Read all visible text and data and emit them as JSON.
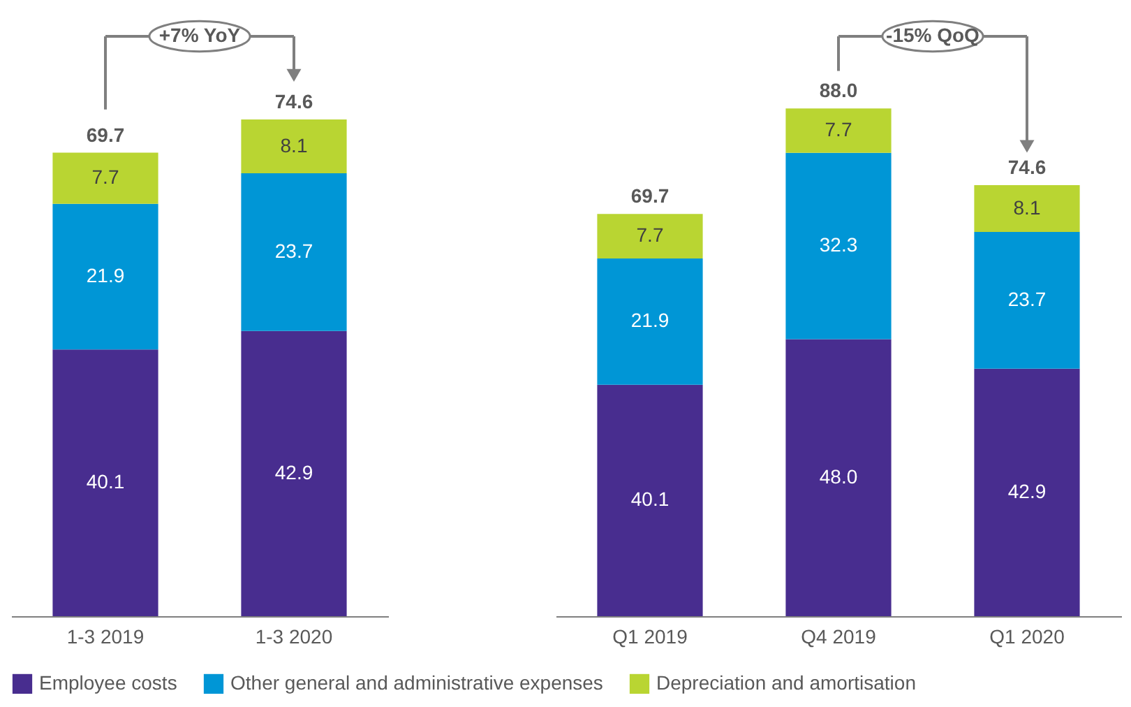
{
  "chart_data": [
    {
      "type": "bar",
      "stacked": true,
      "categories": [
        "1-3 2019",
        "1-3 2020"
      ],
      "tick_labels": "x",
      "grid": false,
      "legend": "bottom",
      "series": [
        {
          "name": "Employee costs",
          "color": "#482d8f",
          "values": [
            40.1,
            42.9
          ],
          "value_labels": [
            "40.1",
            "42.9"
          ]
        },
        {
          "name": "Other general and administrative expenses",
          "color": "#0096d6",
          "values": [
            21.9,
            23.7
          ],
          "value_labels": [
            "21.9",
            "23.7"
          ]
        },
        {
          "name": "Depreciation and amortisation",
          "color": "#b9d532",
          "values": [
            7.7,
            8.1
          ],
          "value_labels": [
            "7.7",
            "8.1"
          ]
        }
      ],
      "totals": [
        "69.7",
        "74.6"
      ],
      "annotations": [
        "+7% YoY"
      ]
    },
    {
      "type": "bar",
      "stacked": true,
      "categories": [
        "Q1 2019",
        "Q4 2019",
        "Q1 2020"
      ],
      "tick_labels": "x",
      "grid": false,
      "legend": "bottom",
      "series": [
        {
          "name": "Employee costs",
          "color": "#482d8f",
          "values": [
            40.1,
            48.0,
            42.9
          ],
          "value_labels": [
            "40.1",
            "48.0",
            "42.9"
          ]
        },
        {
          "name": "Other general and administrative expenses",
          "color": "#0096d6",
          "values": [
            21.9,
            32.3,
            23.7
          ],
          "value_labels": [
            "21.9",
            "32.3",
            "23.7"
          ]
        },
        {
          "name": "Depreciation and amortisation",
          "color": "#b9d532",
          "values": [
            7.7,
            7.7,
            8.1
          ],
          "value_labels": [
            "7.7",
            "7.7",
            "8.1"
          ]
        }
      ],
      "totals": [
        "69.7",
        "88.0",
        "74.6"
      ],
      "annotations": [
        "-15% QoQ"
      ]
    }
  ]
}
